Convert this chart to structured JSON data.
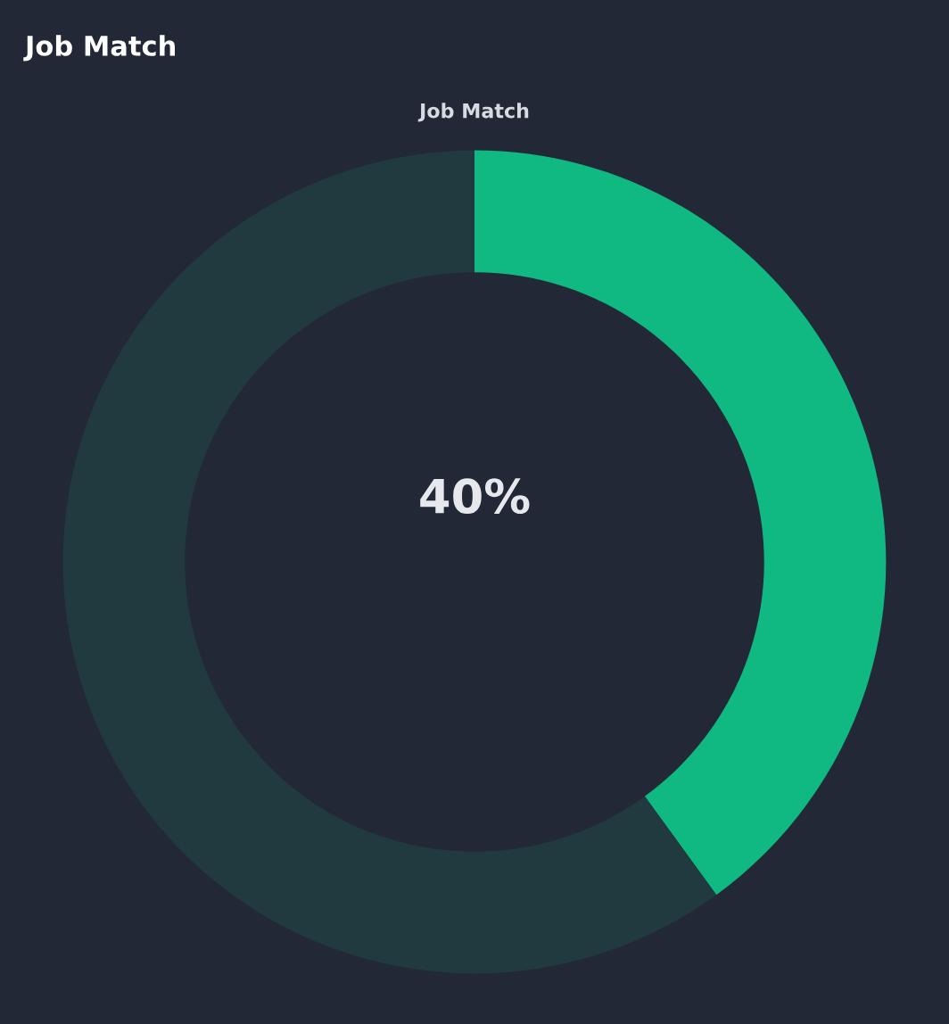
{
  "chart_data": {
    "type": "donut",
    "title": "Job Match",
    "subtitle": "Job Match",
    "categories": [
      null,
      null
    ],
    "values": [
      40,
      60
    ],
    "colors": [
      "#10b981",
      "#213a3f"
    ],
    "annotations": [
      "40%"
    ]
  }
}
